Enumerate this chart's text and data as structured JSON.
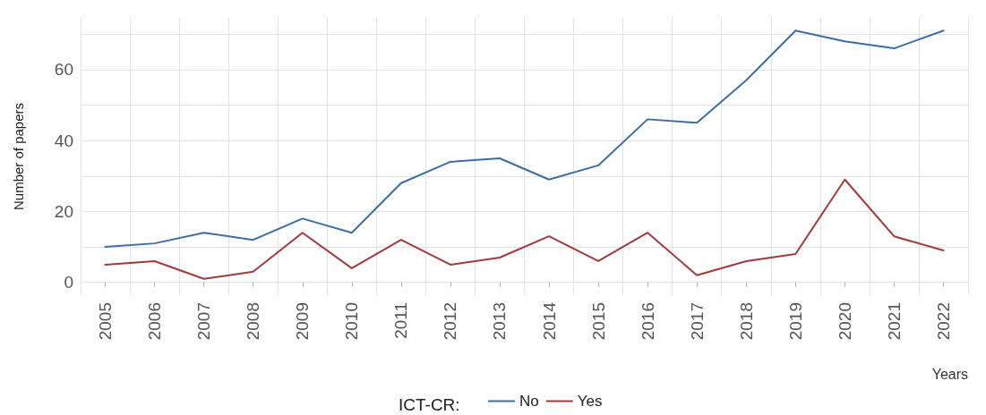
{
  "chart_data": {
    "type": "line",
    "xlabel": "Years",
    "ylabel": "Number of papers",
    "legend_title": "ICT-CR:",
    "legend": "bottom",
    "grid": true,
    "marker": "none",
    "line_style": "solid",
    "categories": [
      "2005",
      "2006",
      "2007",
      "2008",
      "2009",
      "2010",
      "2011",
      "2012",
      "2013",
      "2014",
      "2015",
      "2016",
      "2017",
      "2018",
      "2019",
      "2020",
      "2021",
      "2022"
    ],
    "ylim": [
      -3.6,
      74.6
    ],
    "yticks": [
      0,
      {
        "value": 10,
        "label": null
      },
      20,
      {
        "value": 30,
        "label": null
      },
      40,
      {
        "value": 50,
        "label": null
      },
      60,
      {
        "value": 70,
        "label": null
      }
    ],
    "series": [
      {
        "name": "No",
        "color": "#3b6ea5",
        "values": [
          10,
          11,
          14,
          12,
          18,
          14,
          28,
          34,
          35,
          29,
          33,
          46,
          45,
          57,
          71,
          68,
          66,
          71
        ]
      },
      {
        "name": "Yes",
        "color": "#a33a3a",
        "values": [
          5,
          6,
          1,
          3,
          14,
          4,
          12,
          5,
          7,
          13,
          6,
          14,
          2,
          6,
          8,
          29,
          13,
          9
        ]
      }
    ]
  }
}
